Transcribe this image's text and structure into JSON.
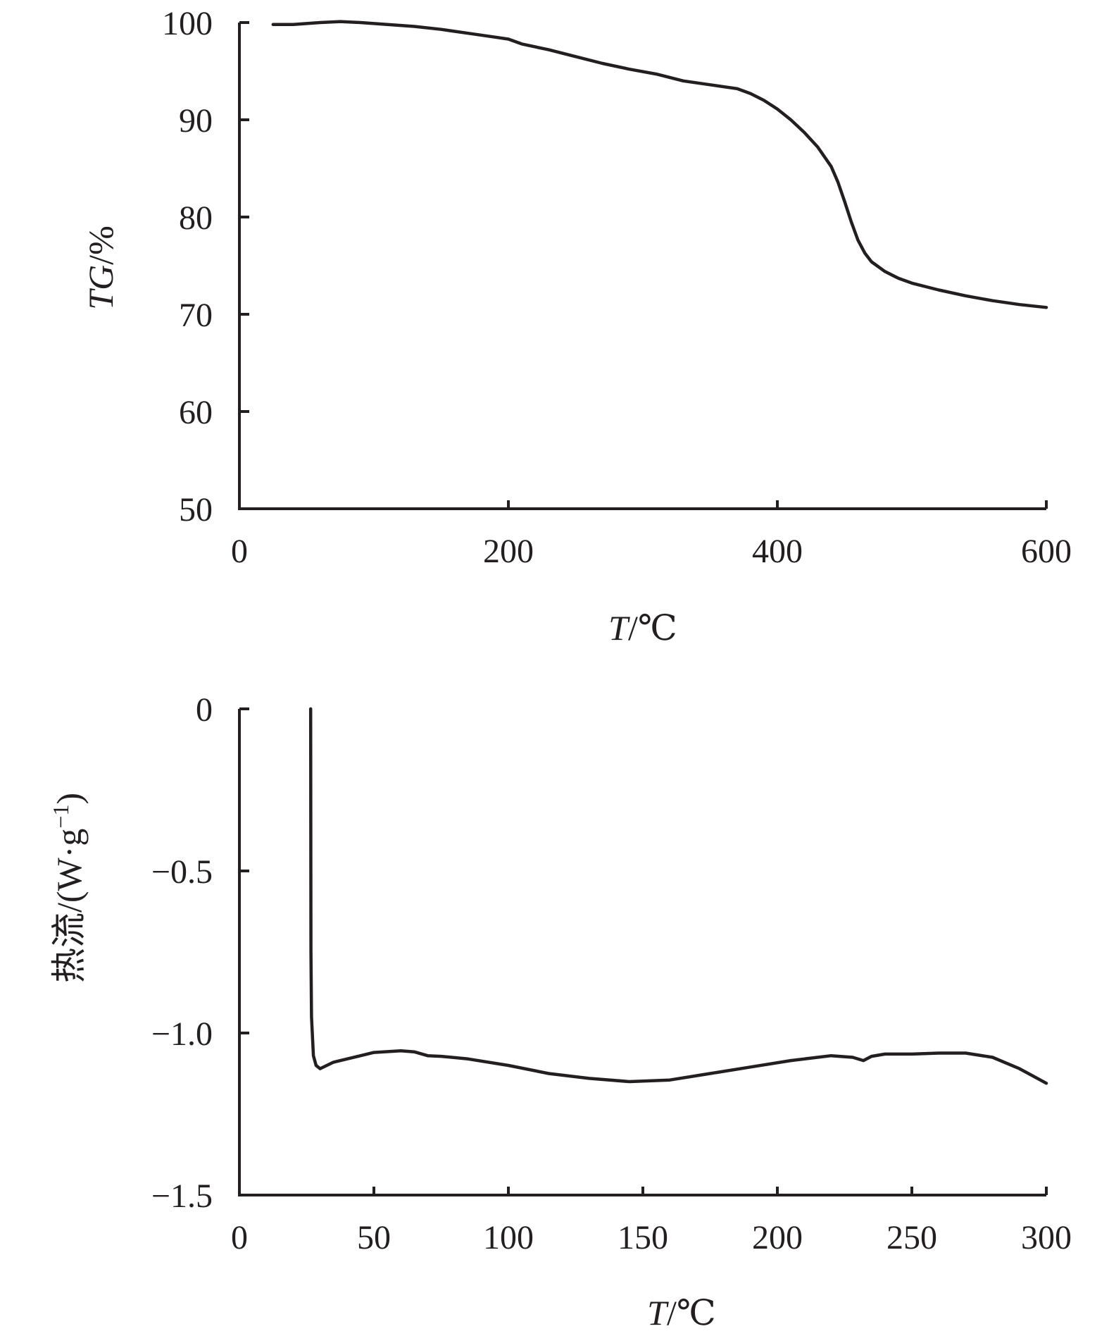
{
  "chart_data": [
    {
      "type": "line",
      "xlabel_var": "T",
      "xlabel_unit": "/℃",
      "ylabel_var": "TG",
      "ylabel_unit": "/%",
      "xlim": [
        0,
        600
      ],
      "ylim": [
        50,
        100
      ],
      "xticks": [
        0,
        200,
        400,
        600
      ],
      "yticks": [
        50,
        60,
        70,
        80,
        90,
        100
      ],
      "grid": false,
      "x": [
        25,
        40,
        60,
        75,
        90,
        110,
        130,
        150,
        170,
        190,
        200,
        210,
        230,
        250,
        270,
        290,
        310,
        330,
        350,
        370,
        380,
        390,
        400,
        410,
        420,
        430,
        440,
        445,
        450,
        455,
        460,
        465,
        470,
        480,
        490,
        500,
        520,
        540,
        560,
        580,
        600
      ],
      "y": [
        99.8,
        99.8,
        100.0,
        100.1,
        100.0,
        99.8,
        99.6,
        99.3,
        98.9,
        98.5,
        98.3,
        97.8,
        97.2,
        96.5,
        95.8,
        95.2,
        94.7,
        94.0,
        93.6,
        93.2,
        92.7,
        92.0,
        91.1,
        90.0,
        88.7,
        87.2,
        85.2,
        83.6,
        81.6,
        79.5,
        77.6,
        76.3,
        75.4,
        74.4,
        73.7,
        73.2,
        72.5,
        71.9,
        71.4,
        71.0,
        70.7
      ]
    },
    {
      "type": "line",
      "xlabel_var": "T",
      "xlabel_unit": "/℃",
      "ylabel_main": "热流/(W·g",
      "ylabel_sup": "−1",
      "ylabel_end": ")",
      "xlim": [
        0,
        300
      ],
      "ylim": [
        -1.5,
        0
      ],
      "xticks": [
        0,
        50,
        100,
        150,
        200,
        250,
        300
      ],
      "ytick_values": [
        0,
        -0.5,
        -1.0,
        -1.5
      ],
      "ytick_labels": [
        "0",
        "−0.5",
        "−1.0",
        "−1.5"
      ],
      "grid": false,
      "x": [
        26.5,
        26.6,
        26.8,
        27.5,
        28.5,
        30,
        35,
        40,
        50,
        60,
        65,
        70,
        75,
        85,
        100,
        115,
        130,
        145,
        160,
        175,
        190,
        205,
        220,
        228,
        232,
        235,
        240,
        250,
        260,
        270,
        280,
        290,
        300
      ],
      "y": [
        0.0,
        -0.75,
        -0.95,
        -1.07,
        -1.1,
        -1.11,
        -1.09,
        -1.08,
        -1.06,
        -1.055,
        -1.058,
        -1.07,
        -1.072,
        -1.08,
        -1.1,
        -1.125,
        -1.14,
        -1.15,
        -1.145,
        -1.125,
        -1.105,
        -1.085,
        -1.07,
        -1.075,
        -1.085,
        -1.072,
        -1.065,
        -1.065,
        -1.062,
        -1.062,
        -1.075,
        -1.11,
        -1.155
      ]
    }
  ]
}
